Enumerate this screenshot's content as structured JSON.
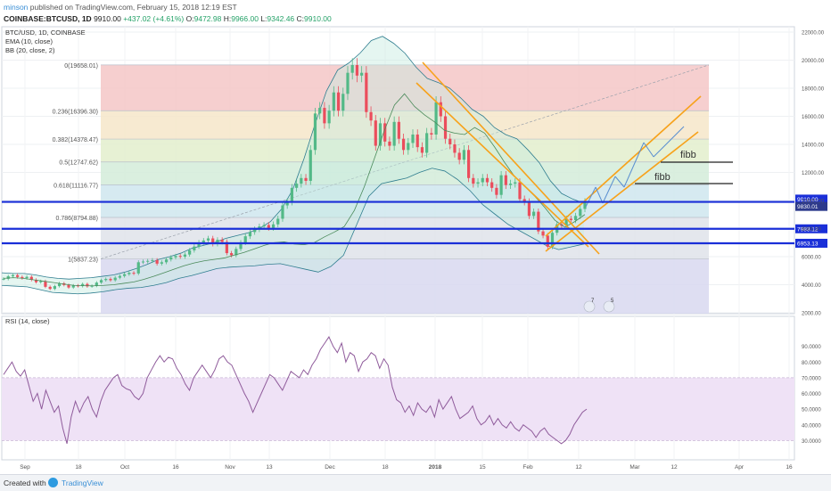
{
  "header": {
    "author": "minson",
    "published_text": "published on TradingView.com, February 15, 2018 12:19 EST",
    "symbol": "COINBASE:BTCUSD, 1D",
    "last": "9910.00",
    "change": "+437.02 (+4.61%)",
    "open_label": "O:",
    "open": "9472.98",
    "high_label": "H:",
    "high": "9966.00",
    "low_label": "L:",
    "low": "9342.46",
    "close_label": "C:",
    "close": "9910.00"
  },
  "legend": {
    "title": "BTC/USD, 1D, COINBASE",
    "ema": "EMA (10, close)",
    "bb": "BB (20, close, 2)",
    "rsi": "RSI (14, close)"
  },
  "colors": {
    "candle_up": "#53b987",
    "candle_down": "#eb4d5c",
    "bb": "#2f7d8f",
    "ema": "#4a8a5a",
    "rsi": "#8f5b9b",
    "channel": "#f7a21b",
    "support": "#1a2fd8",
    "arrows": "#5a8fd0"
  },
  "chart_data": [
    {
      "type": "candlestick",
      "title": "BTC/USD, 1D, COINBASE",
      "y_axis_ticks": [
        2000,
        4000,
        6000,
        8000,
        10000,
        12000,
        14000,
        16000,
        18000,
        20000,
        22000
      ],
      "y_tick_labels": [
        "2000.00",
        "4000.00",
        "6000.00",
        "8000.00",
        "10000.00",
        "12000.00",
        "14000.00",
        "16000.00",
        "18000.00",
        "20000.00",
        "22000.00"
      ],
      "ylim": [
        2000,
        22500
      ],
      "x_tick_labels": [
        "Sep",
        "18",
        "Oct",
        "16",
        "Nov",
        "13",
        "Dec",
        "18",
        "2018",
        "15",
        "Feb",
        "12",
        "Mar",
        "12",
        "Apr",
        "16"
      ],
      "price_labels": [
        "9910.00",
        "9830.01",
        "7983.12",
        "6953.13"
      ],
      "support_levels": [
        9900,
        7983.12,
        6953.13
      ],
      "fibonacci": {
        "levels": [
          {
            "label": "0(19658.01)",
            "price": 19658.01,
            "color": "#f4c7c7"
          },
          {
            "label": "0.236(16396.30)",
            "price": 16396.3,
            "color": "#f6e6c9"
          },
          {
            "label": "0.382(14378.47)",
            "price": 14378.47,
            "color": "#e3efcd"
          },
          {
            "label": "0.5(12747.62)",
            "price": 12747.62,
            "color": "#d4ecd9"
          },
          {
            "label": "0.618(11116.77)",
            "price": 11116.77,
            "color": "#cfe6ee"
          },
          {
            "label": "0.786(8794.88)",
            "price": 8794.88,
            "color": "#dfe3ea"
          },
          {
            "label": "1(5837.23)",
            "price": 5837.23,
            "color": "#d8d8f0"
          }
        ]
      },
      "annotations": [
        "fibb",
        "fibb"
      ],
      "flags": [
        "7",
        "5"
      ],
      "series": [
        {
          "name": "BTC/USD",
          "values": [
            4420,
            4600,
            4680,
            4550,
            4470,
            4560,
            4350,
            4180,
            4250,
            3850,
            3700,
            3900,
            4100,
            3980,
            3800,
            3950,
            3900,
            4050,
            3880,
            3920,
            4150,
            4330,
            4410,
            4320,
            4500,
            4620,
            4750,
            4850,
            4800,
            5600,
            5650,
            5700,
            5750,
            5500,
            5600,
            5800,
            5950,
            6050,
            6000,
            6150,
            6450,
            6720,
            7010,
            7150,
            7300,
            6900,
            7200,
            7050,
            6250,
            6100,
            6550,
            7000,
            7450,
            7750,
            7950,
            8150,
            8250,
            8050,
            8300,
            8700,
            9650,
            9900,
            10900,
            11200,
            11600,
            11400,
            13600,
            16200,
            16600,
            15500,
            16400,
            17700,
            16400,
            17600,
            19100,
            19650,
            18900,
            19100,
            16300,
            15700,
            13900,
            15500,
            14200,
            13900,
            15600,
            14400,
            13600,
            14100,
            14700,
            13800,
            13400,
            14800,
            14700,
            17000,
            16000,
            14400,
            14000,
            13400,
            12900,
            13600,
            11600,
            11200,
            11300,
            11600,
            11300,
            10900,
            10400,
            11800,
            11100,
            11200,
            11300,
            10100,
            9900,
            8900,
            9200,
            7800,
            7500,
            6700,
            7700,
            8300,
            8200,
            8700,
            8600,
            8900,
            9400,
            9910
          ]
        },
        {
          "name": "EMA (10, close)",
          "values": [
            4450,
            4500,
            4450,
            4350,
            4250,
            4150,
            4050,
            3950,
            3930,
            3920,
            3950,
            4000,
            4100,
            4200,
            4380,
            4600,
            4850,
            5100,
            5350,
            5550,
            5700,
            5800,
            5900,
            6100,
            6300,
            6550,
            6800,
            7000,
            7050,
            6900,
            6850,
            7000,
            7400,
            7750,
            8150,
            9300,
            11000,
            13000,
            15000,
            16800,
            17600,
            16700,
            16100,
            15600,
            15000,
            14800,
            14700,
            15200,
            14800,
            13800,
            12700,
            11700,
            11000,
            10300,
            9500,
            8600,
            8100,
            8500,
            9000
          ]
        },
        {
          "name": "BB (20, close, 2) upper",
          "values": [
            4850,
            4800,
            4800,
            4700,
            4550,
            4450,
            4400,
            4450,
            4500,
            4600,
            4700,
            4900,
            5150,
            5450,
            5800,
            6000,
            6250,
            6600,
            6800,
            7000,
            7300,
            7500,
            7700,
            8000,
            8500,
            9400,
            10800,
            13000,
            15500,
            17800,
            19300,
            19800,
            20500,
            21400,
            21700,
            21200,
            20500,
            19500,
            18700,
            18400,
            18000,
            17300,
            16500,
            16000,
            15200,
            14700,
            14400,
            13600,
            12700,
            11400,
            10500,
            10100,
            9800
          ]
        },
        {
          "name": "BB (20, close, 2) lower",
          "values": [
            3950,
            3900,
            3850,
            3650,
            3450,
            3400,
            3350,
            3400,
            3500,
            3650,
            3750,
            3800,
            3950,
            4150,
            4450,
            4650,
            4900,
            5150,
            5250,
            5300,
            5350,
            5450,
            5500,
            5300,
            5100,
            4900,
            5300,
            6100,
            8200,
            10300,
            11200,
            11400,
            11600,
            12000,
            12300,
            12100,
            11500,
            10700,
            9700,
            9000,
            8300,
            7800,
            7300,
            6800,
            6500,
            6700,
            6900
          ]
        }
      ]
    },
    {
      "type": "line",
      "title": "RSI (14, close)",
      "ylim": [
        20,
        100
      ],
      "y_axis_ticks": [
        30,
        40,
        50,
        60,
        70,
        80,
        90
      ],
      "y_tick_labels": [
        "30.0000",
        "40.0000",
        "50.0000",
        "60.0000",
        "70.0000",
        "80.0000",
        "90.0000"
      ],
      "band": [
        30,
        70
      ],
      "series": [
        {
          "name": "RSI",
          "values": [
            72,
            76,
            80,
            74,
            71,
            75,
            65,
            55,
            60,
            50,
            62,
            55,
            48,
            52,
            38,
            28,
            45,
            55,
            48,
            54,
            58,
            50,
            45,
            55,
            62,
            66,
            70,
            72,
            65,
            63,
            62,
            58,
            56,
            60,
            70,
            75,
            80,
            84,
            80,
            83,
            82,
            76,
            72,
            66,
            62,
            70,
            74,
            78,
            74,
            70,
            75,
            82,
            84,
            80,
            78,
            72,
            66,
            60,
            55,
            48,
            54,
            60,
            66,
            72,
            70,
            66,
            62,
            68,
            74,
            72,
            70,
            75,
            72,
            78,
            82,
            88,
            92,
            96,
            90,
            86,
            92,
            80,
            86,
            84,
            74,
            80,
            82,
            86,
            84,
            76,
            82,
            78,
            64,
            56,
            54,
            48,
            52,
            46,
            54,
            50,
            48,
            52,
            45,
            56,
            50,
            54,
            58,
            50,
            44,
            46,
            48,
            52,
            44,
            40,
            42,
            46,
            40,
            44,
            40,
            38,
            42,
            38,
            36,
            40,
            38,
            36,
            32,
            36,
            38,
            34,
            32,
            30,
            28,
            30,
            34,
            40,
            44,
            48,
            50
          ]
        }
      ]
    }
  ]
}
